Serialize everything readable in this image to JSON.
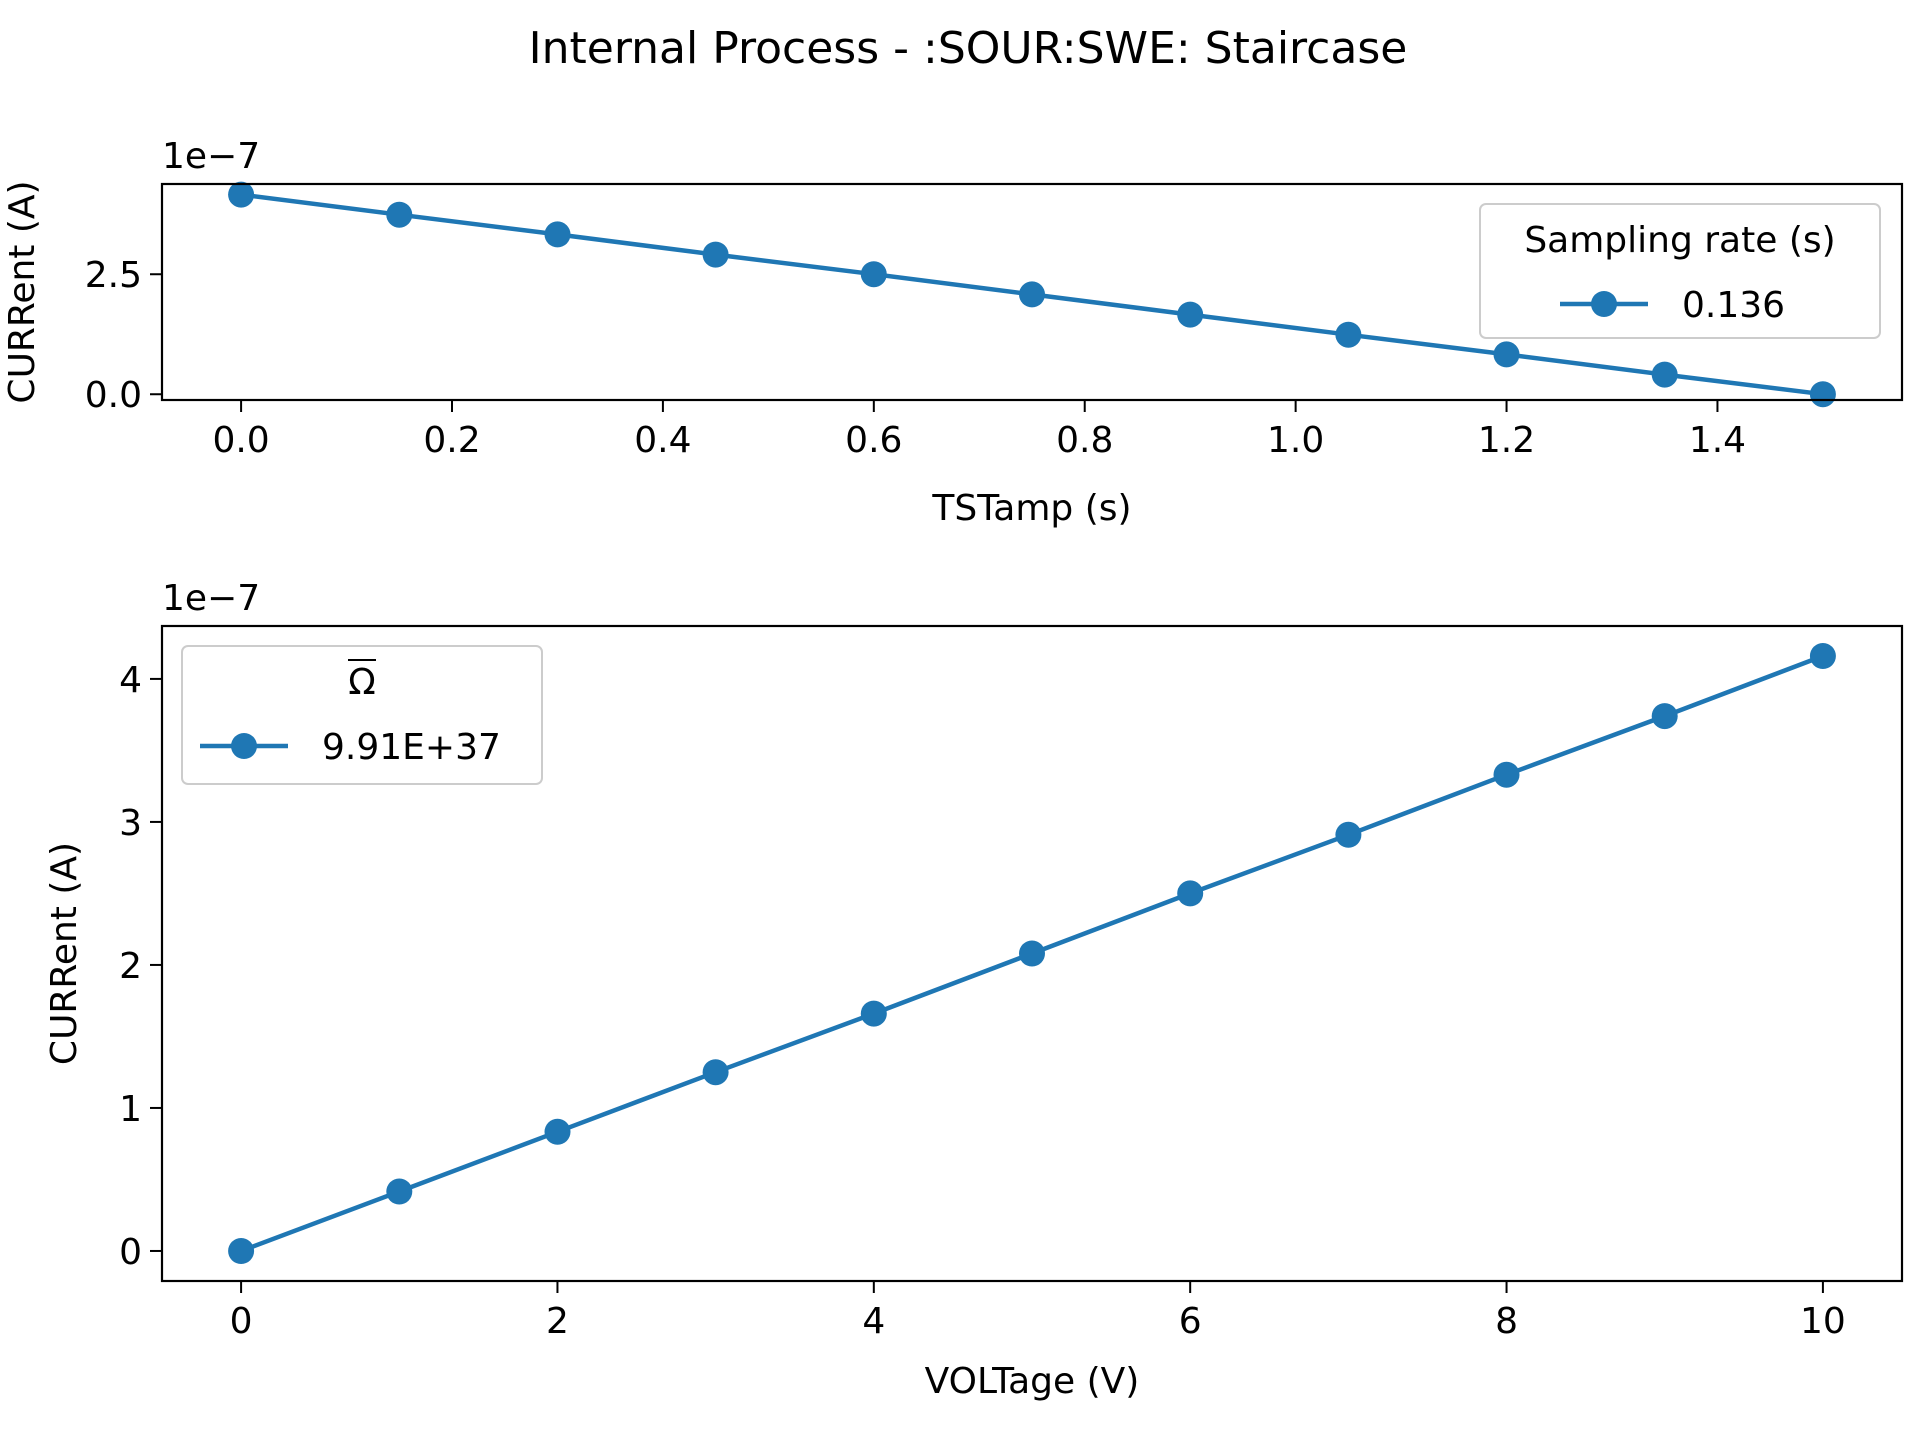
{
  "figure": {
    "suptitle": "Internal Process - :SOUR:SWE: Staircase"
  },
  "chart_data": [
    {
      "type": "line",
      "title": "",
      "xlabel": "TSTamp (s)",
      "ylabel": "CURRent (A)",
      "y_offset_text": "1e−7",
      "xlim": [
        -0.075,
        1.575
      ],
      "ylim": [
        -0.12,
        4.38
      ],
      "x_ticks": [
        0.0,
        0.2,
        0.4,
        0.6,
        0.8,
        1.0,
        1.2,
        1.4
      ],
      "x_tick_labels": [
        "0.0",
        "0.2",
        "0.4",
        "0.6",
        "0.8",
        "1.0",
        "1.2",
        "1.4"
      ],
      "y_ticks": [
        0.0,
        2.5
      ],
      "y_tick_labels": [
        "0.0",
        "2.5"
      ],
      "grid": false,
      "legend": {
        "title": "Sampling rate (s)",
        "placement": "upper-right",
        "entries": [
          "0.136"
        ]
      },
      "series": [
        {
          "name": "0.136",
          "color": "#1f77b4",
          "marker": "circle",
          "x": [
            0.0,
            0.15,
            0.3,
            0.45,
            0.6,
            0.75,
            0.9,
            1.05,
            1.2,
            1.35,
            1.5
          ],
          "y": [
            4.16,
            3.74,
            3.33,
            2.91,
            2.5,
            2.08,
            1.66,
            1.24,
            0.83,
            0.41,
            0.0
          ]
        }
      ]
    },
    {
      "type": "line",
      "title": "",
      "xlabel": "VOLTage (V)",
      "ylabel": "CURRent (A)",
      "y_offset_text": "1e−7",
      "xlim": [
        -0.5,
        10.5
      ],
      "ylim": [
        -0.21,
        4.37
      ],
      "x_ticks": [
        0,
        2,
        4,
        6,
        8,
        10
      ],
      "x_tick_labels": [
        "0",
        "2",
        "4",
        "6",
        "8",
        "10"
      ],
      "y_ticks": [
        0,
        1,
        2,
        3,
        4
      ],
      "y_tick_labels": [
        "0",
        "1",
        "2",
        "3",
        "4"
      ],
      "grid": false,
      "legend": {
        "title": "Ω",
        "placement": "upper-left",
        "entries": [
          "9.91E+37"
        ]
      },
      "series": [
        {
          "name": "9.91E+37",
          "color": "#1f77b4",
          "marker": "circle",
          "x": [
            0,
            1,
            2,
            3,
            4,
            5,
            6,
            7,
            8,
            9,
            10
          ],
          "y": [
            0.0,
            0.416,
            0.833,
            1.25,
            1.66,
            2.08,
            2.5,
            2.91,
            3.33,
            3.74,
            4.16
          ]
        }
      ]
    }
  ]
}
